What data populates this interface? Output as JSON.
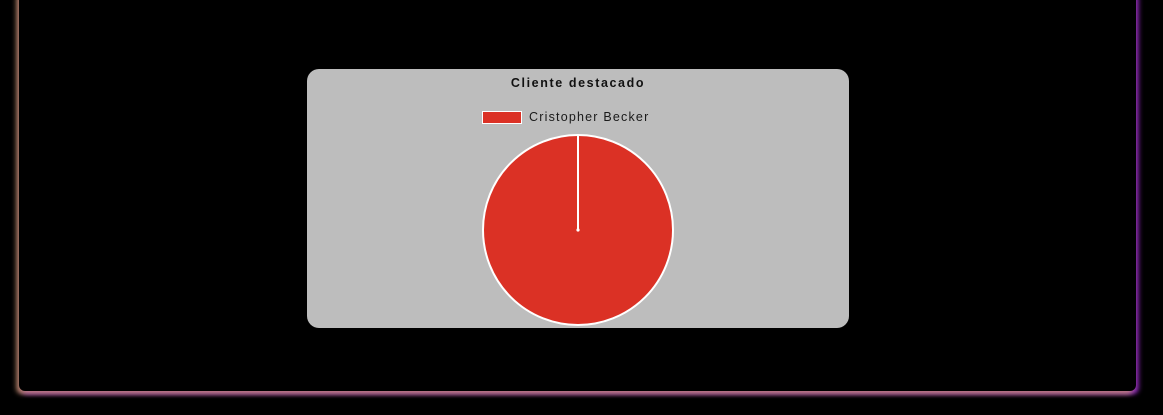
{
  "chart_data": {
    "type": "pie",
    "title": "Cliente destacado",
    "legend_position": "top",
    "categories": [
      "Cristopher Becker"
    ],
    "values": [
      1
    ],
    "colors": [
      "#db3125"
    ]
  },
  "colors": {
    "page_background": "#000000",
    "card_background": "#bdbdbd",
    "slice_border": "#ffffff"
  }
}
